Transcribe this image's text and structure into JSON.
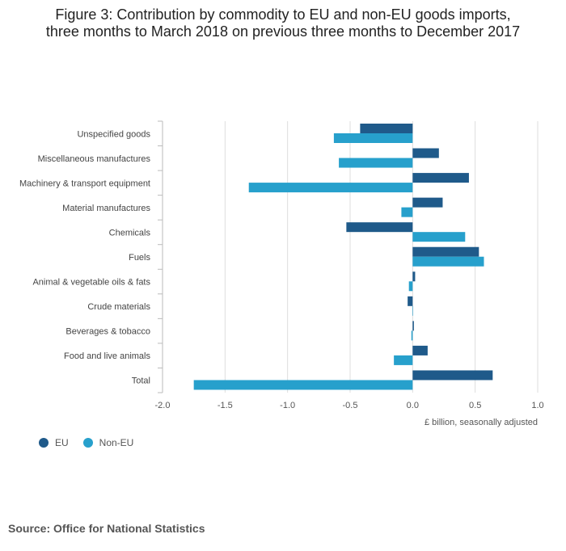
{
  "title_line1": "Figure 3: Contribution by commodity to EU and non-EU goods imports,",
  "title_line2": "three months to March 2018 on previous three months to December 2017",
  "source": "Source: Office for National Statistics",
  "colors": {
    "eu": "#1f5a8a",
    "non_eu": "#27a0cc",
    "grid": "#dddddd",
    "axis": "#bbbbbb"
  },
  "chart_data": {
    "type": "bar",
    "orientation": "horizontal",
    "categories": [
      "Unspecified goods",
      "Miscellaneous manufactures",
      "Machinery & transport equipment",
      "Material manufactures",
      "Chemicals",
      "Fuels",
      "Animal & vegetable oils & fats",
      "Crude materials",
      "Beverages & tobacco",
      "Food and live animals",
      "Total"
    ],
    "series": [
      {
        "name": "EU",
        "values": [
          -0.42,
          0.21,
          0.45,
          0.24,
          -0.53,
          0.53,
          0.02,
          -0.04,
          0.01,
          0.12,
          0.64
        ]
      },
      {
        "name": "Non-EU",
        "values": [
          -0.63,
          -0.59,
          -1.31,
          -0.09,
          0.42,
          0.57,
          -0.03,
          0.0,
          -0.01,
          -0.15,
          -1.75
        ]
      }
    ],
    "xlabel": "£ billion, seasonally adjusted",
    "ylabel": "",
    "xlim": [
      -2.0,
      1.0
    ],
    "xticks": [
      -2.0,
      -1.5,
      -1.0,
      -0.5,
      0,
      0.5,
      1.0
    ],
    "xtick_labels": [
      "-2.0",
      "-1.5",
      "-1.0",
      "-0.5",
      "0.0",
      "0.5",
      "1.0"
    ],
    "grid": true,
    "legend": "bottom-left"
  }
}
